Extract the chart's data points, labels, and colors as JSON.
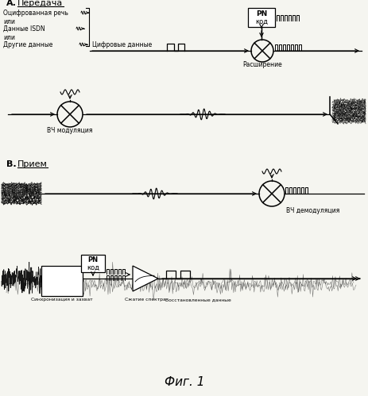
{
  "title": "Фиг. 1",
  "section_A_label": "А.",
  "section_A_underline": "Передача",
  "section_B_label": "В.",
  "section_B_underline": "Прием",
  "input_line1": "Оцифрованная речь",
  "input_line2": "или",
  "input_line3": "Данные ISDN",
  "input_line4": "или",
  "input_line5": "Другие данные",
  "digital_data_label": "Цифровые данные",
  "spread_label": "Расширение",
  "pn_kod_label": "PN\nкод",
  "hf_mod_label": "ВЧ модуляция",
  "hf_demod_label": "ВЧ демодуляция",
  "sync_label": "Синхронизация и захват",
  "compress_label": "Сжатие спектра",
  "restored_label": "Восстановленные данные",
  "bg_color": "#f5f5f0",
  "line_color": "#000000",
  "fig_width": 4.64,
  "fig_height": 4.99,
  "dpi": 100
}
